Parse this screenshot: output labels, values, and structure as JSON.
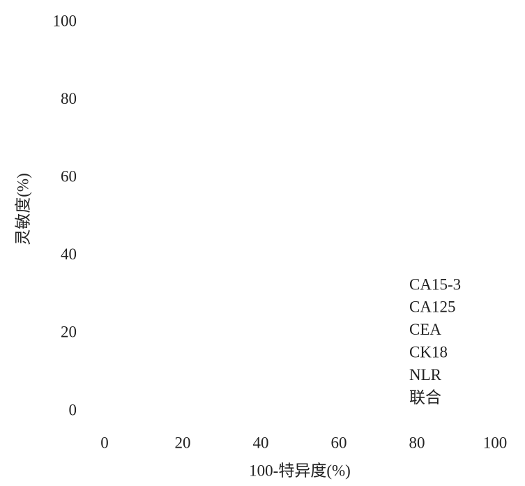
{
  "chart_data": {
    "type": "line",
    "xlabel": "100-特异度(%)",
    "ylabel": "灵敏度(%)",
    "xlim": [
      0,
      100
    ],
    "xticks": [
      0,
      20,
      40,
      60,
      80,
      100
    ],
    "ylim": [
      0,
      100
    ],
    "yticks": [
      0,
      20,
      40,
      60,
      80,
      100
    ],
    "series": [
      {
        "name": "CA15-3"
      },
      {
        "name": "CA125"
      },
      {
        "name": "CEA"
      },
      {
        "name": "CK18"
      },
      {
        "name": "NLR"
      },
      {
        "name": "联合"
      }
    ]
  }
}
